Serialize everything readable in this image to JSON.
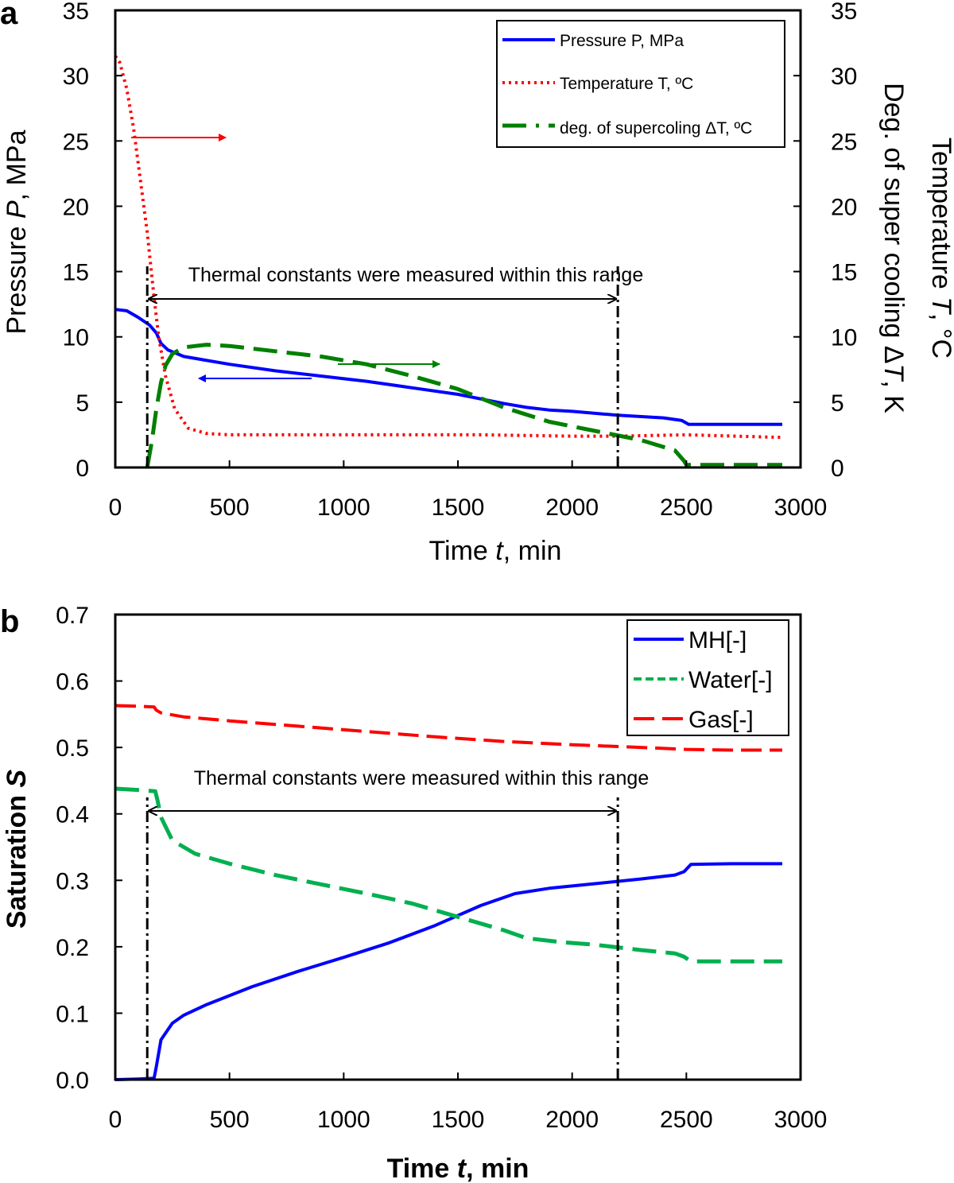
{
  "chart_data": [
    {
      "panel": "a",
      "type": "line",
      "xlabel": "Time t, min",
      "ylabel_left": "Pressure P, MPa",
      "ylabel_right_outer": "Temperature T, °C",
      "ylabel_right_inner": "Deg. of super cooling ΔT, K",
      "xlim": [
        0,
        3000
      ],
      "ylim": [
        0,
        35
      ],
      "xticks": [
        "0",
        "500",
        "1000",
        "1500",
        "2000",
        "2500",
        "3000"
      ],
      "yticks": [
        "0",
        "5",
        "10",
        "15",
        "20",
        "25",
        "30",
        "35"
      ],
      "yticks_right": [
        "0",
        "5",
        "10",
        "15",
        "20",
        "25",
        "30",
        "35"
      ],
      "legend_position": "top-right",
      "annotation": "Thermal constants were measured within this range",
      "range": [
        140,
        2200
      ],
      "series": [
        {
          "name": "Pressure P, MPa",
          "color": "#0000ff",
          "style": "solid",
          "x": [
            0,
            50,
            100,
            150,
            180,
            200,
            230,
            300,
            500,
            700,
            900,
            1100,
            1300,
            1500,
            1700,
            1800,
            1900,
            2000,
            2200,
            2400,
            2480,
            2510,
            2600,
            2800,
            2920
          ],
          "y": [
            12.1,
            12,
            11.5,
            10.9,
            10.3,
            9.5,
            9,
            8.5,
            7.9,
            7.4,
            7,
            6.6,
            6.1,
            5.6,
            4.9,
            4.6,
            4.4,
            4.3,
            4,
            3.8,
            3.6,
            3.3,
            3.3,
            3.3,
            3.3
          ]
        },
        {
          "name": "Temperature T, ºC",
          "color": "#ff0000",
          "style": "dotted",
          "x": [
            0,
            20,
            50,
            80,
            110,
            140,
            170,
            190,
            220,
            260,
            320,
            400,
            500,
            800,
            1200,
            1600,
            2000,
            2200,
            2500,
            2920
          ],
          "y": [
            31.5,
            31,
            29,
            26,
            22,
            18,
            13,
            10,
            7,
            4.5,
            3,
            2.6,
            2.5,
            2.5,
            2.5,
            2.5,
            2.4,
            2.4,
            2.5,
            2.3
          ]
        },
        {
          "name": "deg. of supercoling ΔT, ºC",
          "color": "#008000",
          "style": "dashed",
          "x": [
            140,
            160,
            180,
            200,
            220,
            250,
            300,
            400,
            500,
            700,
            900,
            1100,
            1300,
            1500,
            1700,
            1900,
            2100,
            2300,
            2450,
            2490,
            2500,
            2600,
            2800,
            2920
          ],
          "y": [
            0,
            2,
            4.5,
            6.5,
            7.8,
            8.7,
            9.2,
            9.4,
            9.3,
            8.9,
            8.5,
            7.9,
            7,
            6,
            4.6,
            3.5,
            2.8,
            2.1,
            1.3,
            0.5,
            0.2,
            0.2,
            0.2,
            0.2
          ]
        }
      ],
      "arrows": [
        {
          "series": "Temperature T, ºC",
          "direction": "right",
          "color": "#ff0000"
        },
        {
          "series": "deg. of supercoling ΔT, ºC",
          "direction": "right",
          "color": "#008000"
        },
        {
          "series": "Pressure P, MPa",
          "direction": "left",
          "color": "#0000ff"
        }
      ]
    },
    {
      "panel": "b",
      "type": "line",
      "xlabel": "Time t, min",
      "ylabel": "Saturation S",
      "xlim": [
        0,
        3000
      ],
      "ylim": [
        0,
        0.7
      ],
      "xticks": [
        "0",
        "500",
        "1000",
        "1500",
        "2000",
        "2500",
        "3000"
      ],
      "yticks": [
        "0.0",
        "0.1",
        "0.2",
        "0.3",
        "0.4",
        "0.5",
        "0.6",
        "0.7"
      ],
      "legend_position": "top-right",
      "annotation": "Thermal constants were measured within this range",
      "range": [
        140,
        2200
      ],
      "series": [
        {
          "name": "MH[-]",
          "color": "#0000ff",
          "style": "solid",
          "x": [
            0,
            100,
            170,
            180,
            200,
            250,
            300,
            400,
            600,
            800,
            1000,
            1200,
            1400,
            1600,
            1750,
            1900,
            2100,
            2300,
            2450,
            2490,
            2520,
            2700,
            2920
          ],
          "y": [
            0,
            0.001,
            0.002,
            0.02,
            0.06,
            0.085,
            0.097,
            0.113,
            0.14,
            0.163,
            0.184,
            0.206,
            0.232,
            0.262,
            0.28,
            0.288,
            0.295,
            0.302,
            0.308,
            0.313,
            0.324,
            0.325,
            0.325
          ]
        },
        {
          "name": "Water[-]",
          "color": "#00b050",
          "style": "dashed",
          "x": [
            0,
            100,
            175,
            185,
            200,
            250,
            350,
            500,
            700,
            900,
            1100,
            1300,
            1500,
            1700,
            1800,
            1950,
            2100,
            2300,
            2450,
            2490,
            2520,
            2700,
            2920
          ],
          "y": [
            0.438,
            0.436,
            0.434,
            0.42,
            0.395,
            0.36,
            0.34,
            0.325,
            0.308,
            0.294,
            0.28,
            0.265,
            0.245,
            0.225,
            0.213,
            0.207,
            0.203,
            0.195,
            0.19,
            0.185,
            0.178,
            0.178,
            0.178
          ]
        },
        {
          "name": "Gas[-]",
          "color": "#ff0000",
          "style": "longdash",
          "x": [
            0,
            100,
            170,
            180,
            200,
            300,
            500,
            800,
            1100,
            1400,
            1700,
            2000,
            2300,
            2500,
            2700,
            2920
          ],
          "y": [
            0.563,
            0.562,
            0.561,
            0.556,
            0.552,
            0.546,
            0.54,
            0.532,
            0.524,
            0.516,
            0.509,
            0.504,
            0.5,
            0.497,
            0.496,
            0.496
          ]
        }
      ]
    }
  ]
}
